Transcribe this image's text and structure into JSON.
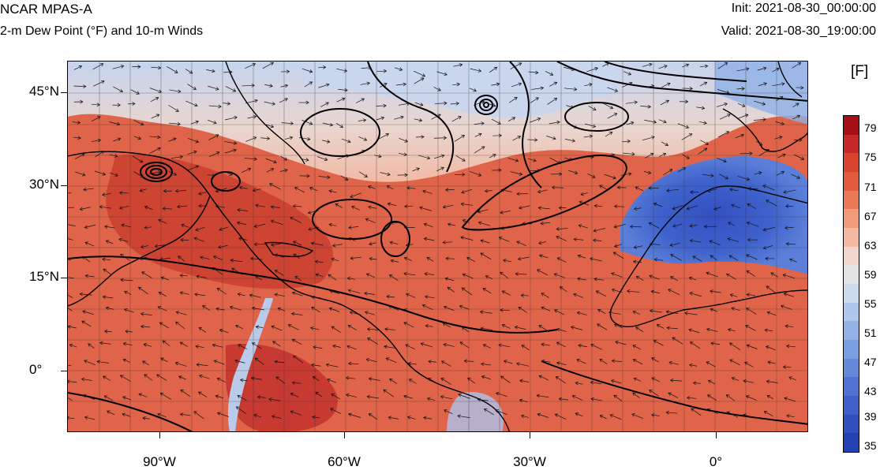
{
  "header": {
    "title": "NCAR MPAS-A",
    "subtitle": "2-m Dew Point (°F) and 10-m Winds",
    "init": "Init: 2021-08-30_00:00:00",
    "valid": "Valid: 2021-08-30_19:00:00"
  },
  "axes": {
    "lat_labels": [
      "45°N",
      "30°N",
      "15°N",
      "0°"
    ],
    "lon_labels": [
      "90°W",
      "60°W",
      "30°W",
      "0°"
    ]
  },
  "colorbar": {
    "unit": "[F]",
    "labels": [
      "79",
      "75",
      "71",
      "67",
      "63",
      "59",
      "55",
      "51",
      "47",
      "43",
      "39",
      "35"
    ],
    "colors": [
      "#a50f15",
      "#c62828",
      "#d9442e",
      "#e25c3c",
      "#ea7a55",
      "#f09a7a",
      "#f4b9a3",
      "#f0d6cc",
      "#e4e4e4",
      "#cddcef",
      "#b0c8ec",
      "#93b2e8",
      "#7a9ee2",
      "#6688db",
      "#5272d3",
      "#4060c8",
      "#3050be",
      "#2540b3"
    ]
  },
  "colors": {
    "ocean_warm": "#e0644a",
    "ocean_hot": "#c73a2c",
    "mid_lat": "#f2b8a4",
    "cool": "#c9d6ee",
    "sahara": "#3e5fc8",
    "contour": "#000000"
  }
}
